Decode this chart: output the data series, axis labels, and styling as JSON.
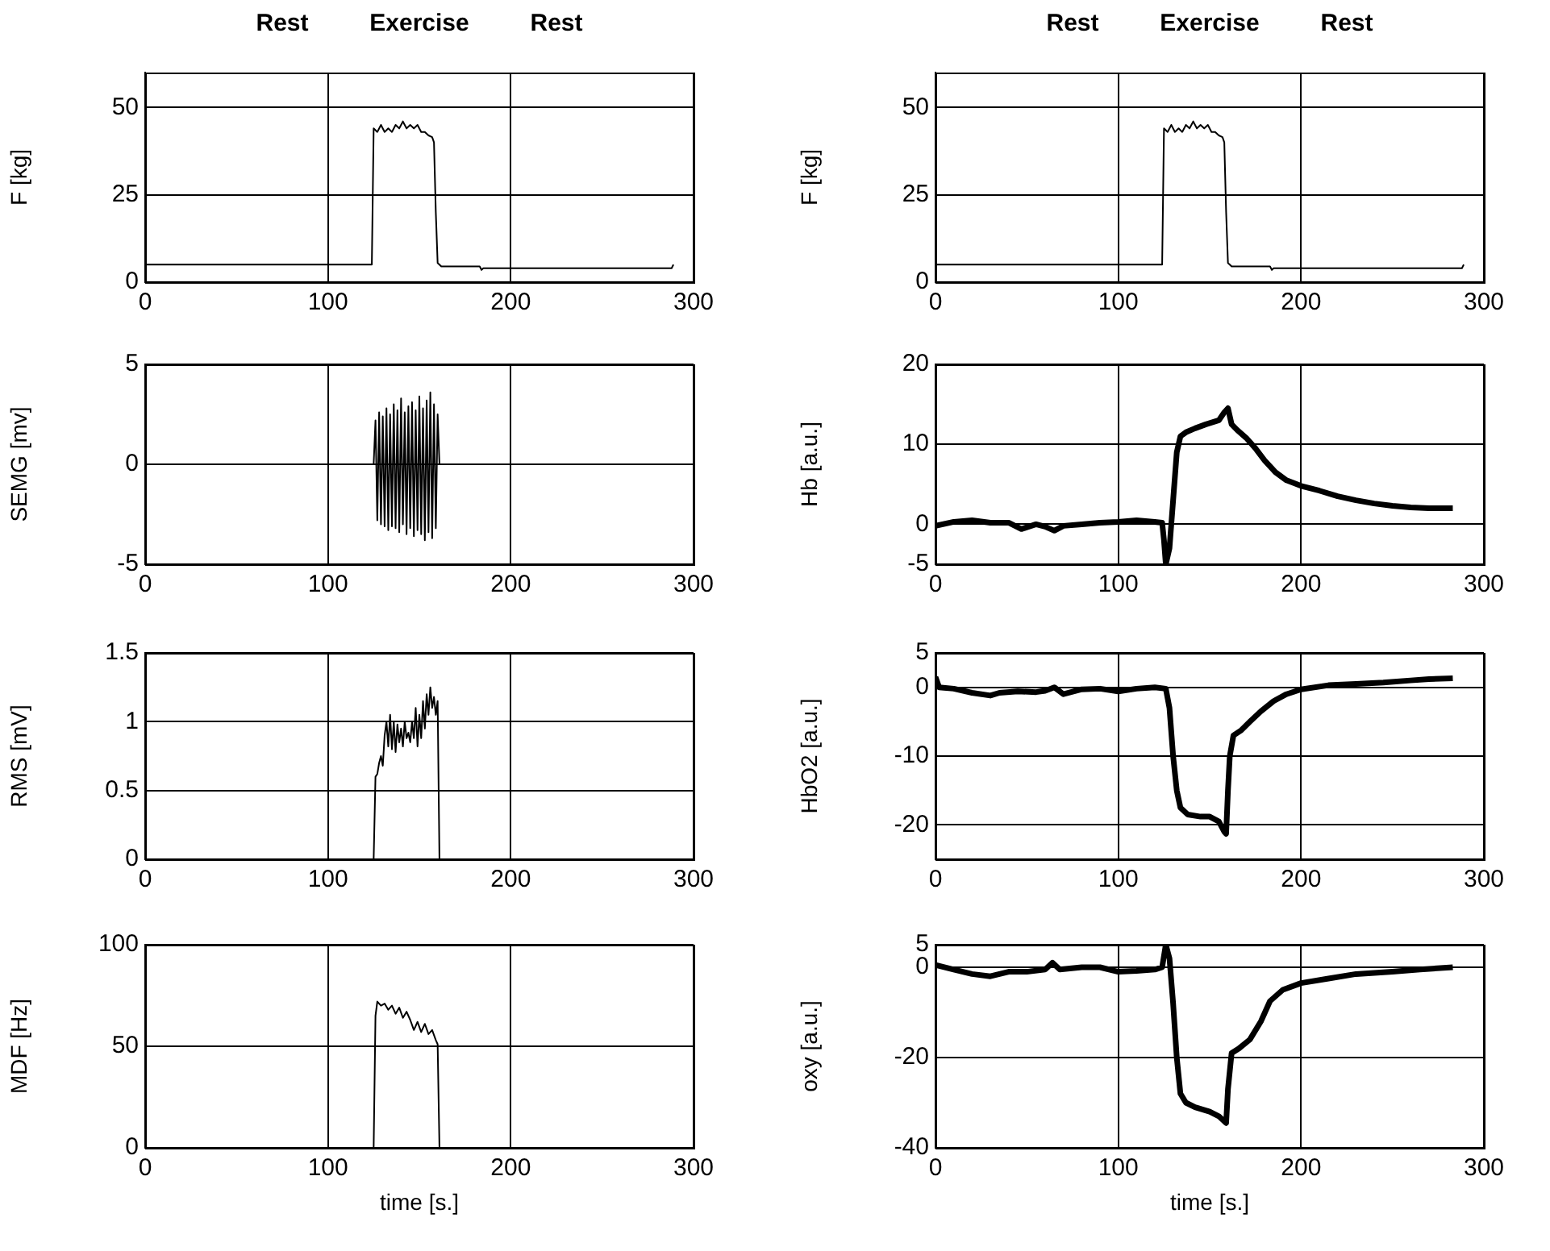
{
  "chart_data": [
    {
      "type": "line",
      "ylabel": "F [kg]",
      "annotations": [
        "Rest",
        "Exercise",
        "Rest"
      ],
      "xlim": [
        0,
        300
      ],
      "xticks": [
        0,
        100,
        200,
        300
      ],
      "ylim": [
        0,
        60
      ],
      "yticks": [
        0,
        25,
        50
      ],
      "grid": true,
      "series": [
        {
          "color": "#000000",
          "x": [
            0,
            124,
            125,
            127,
            129,
            131,
            133,
            135,
            137,
            139,
            141,
            143,
            145,
            147,
            149,
            151,
            153,
            155,
            157,
            158,
            159,
            160,
            162,
            183,
            184,
            185,
            288,
            289
          ],
          "values": [
            5,
            5,
            44,
            43,
            45,
            43,
            44,
            43,
            45,
            44,
            46,
            44,
            45,
            44,
            45,
            43,
            43,
            42,
            41.5,
            40,
            20,
            5.5,
            4.5,
            4.5,
            3.5,
            4,
            4,
            5
          ]
        }
      ]
    },
    {
      "type": "line",
      "ylabel": "F [kg]",
      "annotations": [
        "Rest",
        "Exercise",
        "Rest"
      ],
      "xlim": [
        0,
        300
      ],
      "xticks": [
        0,
        100,
        200,
        300
      ],
      "ylim": [
        0,
        60
      ],
      "yticks": [
        0,
        25,
        50
      ],
      "grid": true,
      "series": [
        {
          "color": "#000000",
          "x": [
            0,
            124,
            125,
            127,
            129,
            131,
            133,
            135,
            137,
            139,
            141,
            143,
            145,
            147,
            149,
            151,
            153,
            155,
            157,
            158,
            159,
            160,
            162,
            183,
            184,
            185,
            288,
            289
          ],
          "values": [
            5,
            5,
            44,
            43,
            45,
            43,
            44,
            43,
            45,
            44,
            46,
            44,
            45,
            44,
            45,
            43,
            43,
            42,
            41.5,
            40,
            20,
            5.5,
            4.5,
            4.5,
            3.5,
            4,
            4,
            5
          ]
        }
      ]
    },
    {
      "type": "line",
      "ylabel": "SEMG [mv]",
      "xlim": [
        0,
        300
      ],
      "xticks": [
        0,
        100,
        200,
        300
      ],
      "ylim": [
        -5,
        5
      ],
      "yticks": [
        -5,
        0,
        5
      ],
      "grid": true,
      "series": [
        {
          "color": "#000000",
          "x": [
            0,
            125,
            126,
            127,
            128,
            129,
            130,
            131,
            132,
            133,
            134,
            135,
            136,
            137,
            138,
            139,
            140,
            141,
            142,
            143,
            144,
            145,
            146,
            147,
            148,
            149,
            150,
            151,
            152,
            153,
            154,
            155,
            156,
            157,
            158,
            159,
            160,
            161,
            285
          ],
          "values": [
            0,
            0,
            2.2,
            -2.8,
            2.6,
            -3.0,
            2.4,
            -3.1,
            2.8,
            -3.3,
            2.5,
            -3.1,
            3.0,
            -3.2,
            2.7,
            -3.4,
            3.3,
            -3.0,
            2.6,
            -3.5,
            2.9,
            -3.2,
            3.1,
            -3.6,
            2.7,
            -3.3,
            3.4,
            -3.5,
            2.8,
            -3.8,
            3.2,
            -3.4,
            3.6,
            -3.7,
            3.0,
            -3.2,
            2.5,
            0,
            0
          ]
        }
      ]
    },
    {
      "type": "line",
      "ylabel": "Hb [a.u.]",
      "xlim": [
        0,
        300
      ],
      "xticks": [
        0,
        100,
        200,
        300
      ],
      "ylim": [
        -5,
        20
      ],
      "yticks": [
        -5,
        0,
        10,
        20
      ],
      "grid": true,
      "series": [
        {
          "color": "#000000",
          "x": [
            0,
            10,
            20,
            30,
            40,
            47,
            55,
            60,
            65,
            70,
            80,
            90,
            100,
            110,
            120,
            124,
            125,
            126,
            128,
            130,
            132,
            134,
            137,
            142,
            148,
            155,
            158,
            160,
            162,
            165,
            170,
            175,
            180,
            186,
            192,
            200,
            210,
            220,
            230,
            240,
            250,
            260,
            270,
            283
          ],
          "values": [
            -0.2,
            0.3,
            0.5,
            0.2,
            0.2,
            -0.6,
            0,
            -0.3,
            -0.8,
            -0.2,
            0,
            0.2,
            0.3,
            0.5,
            0.3,
            0.2,
            -2,
            -5,
            -3,
            3,
            9,
            11,
            11.5,
            12,
            12.5,
            13,
            14,
            14.5,
            12.5,
            11.8,
            10.8,
            9.5,
            8,
            6.5,
            5.5,
            4.8,
            4.2,
            3.5,
            3,
            2.6,
            2.3,
            2.1,
            2.0,
            2.0
          ]
        }
      ]
    },
    {
      "type": "line",
      "ylabel": "RMS [mV]",
      "xlim": [
        0,
        300
      ],
      "xticks": [
        0,
        100,
        200,
        300
      ],
      "ylim": [
        0,
        1.5
      ],
      "yticks": [
        0,
        0.5,
        1,
        1.5
      ],
      "grid": true,
      "series": [
        {
          "color": "#000000",
          "x": [
            0,
            125,
            126,
            127,
            128,
            129,
            130,
            131,
            132,
            133,
            134,
            135,
            136,
            137,
            138,
            139,
            140,
            141,
            142,
            143,
            144,
            145,
            146,
            147,
            148,
            149,
            150,
            151,
            152,
            153,
            154,
            155,
            156,
            157,
            158,
            159,
            160,
            161,
            285
          ],
          "values": [
            0,
            0,
            0.6,
            0.62,
            0.7,
            0.75,
            0.68,
            0.9,
            1.0,
            0.82,
            1.05,
            0.8,
            1.0,
            0.78,
            0.98,
            0.85,
            0.95,
            0.82,
            1.0,
            0.88,
            0.92,
            0.85,
            1.0,
            0.88,
            1.1,
            0.82,
            1.05,
            0.88,
            1.15,
            0.95,
            1.2,
            1.05,
            1.25,
            1.1,
            1.18,
            1.05,
            1.15,
            0,
            0
          ]
        }
      ]
    },
    {
      "type": "line",
      "ylabel": "HbO2 [a.u.]",
      "xlim": [
        0,
        300
      ],
      "xticks": [
        0,
        100,
        200,
        300
      ],
      "ylim": [
        -25,
        5
      ],
      "yticks": [
        -20,
        -10,
        0,
        5
      ],
      "grid": true,
      "series": [
        {
          "color": "#000000",
          "x": [
            0,
            2,
            10,
            20,
            30,
            35,
            45,
            55,
            60,
            65,
            70,
            80,
            90,
            100,
            110,
            120,
            126,
            128,
            130,
            132,
            134,
            138,
            145,
            150,
            155,
            158,
            159,
            160,
            161,
            163,
            167,
            172,
            178,
            185,
            192,
            200,
            215,
            230,
            245,
            260,
            270,
            283
          ],
          "values": [
            1.5,
            0,
            -0.2,
            -0.8,
            -1.2,
            -0.8,
            -0.6,
            -0.7,
            -0.5,
            0,
            -1,
            -0.3,
            -0.2,
            -0.6,
            -0.2,
            0,
            -0.2,
            -3,
            -10,
            -15,
            -17.5,
            -18.5,
            -18.8,
            -18.8,
            -19.5,
            -21,
            -21.3,
            -15,
            -10,
            -7,
            -6.3,
            -5,
            -3.5,
            -2,
            -1,
            -0.3,
            0.3,
            0.5,
            0.7,
            1.0,
            1.2,
            1.3
          ]
        }
      ]
    },
    {
      "type": "line",
      "ylabel": "MDF [Hz]",
      "xlabel": "time [s.]",
      "xlim": [
        0,
        300
      ],
      "xticks": [
        0,
        100,
        200,
        300
      ],
      "ylim": [
        0,
        100
      ],
      "yticks": [
        0,
        50,
        100
      ],
      "grid": true,
      "series": [
        {
          "color": "#000000",
          "x": [
            0,
            125,
            126,
            127,
            129,
            131,
            133,
            135,
            137,
            139,
            141,
            143,
            145,
            147,
            149,
            151,
            153,
            155,
            157,
            159,
            160,
            161,
            285
          ],
          "values": [
            0,
            0,
            65,
            72,
            70,
            71,
            68,
            70,
            66,
            69,
            64,
            67,
            63,
            58,
            62,
            57,
            61,
            56,
            58,
            53,
            51,
            0,
            0
          ]
        }
      ]
    },
    {
      "type": "line",
      "ylabel": "oxy [a.u.]",
      "xlabel": "time [s.]",
      "xlim": [
        0,
        300
      ],
      "xticks": [
        0,
        100,
        200,
        300
      ],
      "ylim": [
        -40,
        5
      ],
      "yticks": [
        -40,
        -20,
        0,
        5
      ],
      "grid": true,
      "series": [
        {
          "color": "#000000",
          "x": [
            0,
            10,
            20,
            30,
            40,
            50,
            60,
            64,
            68,
            80,
            90,
            100,
            110,
            120,
            124,
            126,
            128,
            130,
            132,
            134,
            137,
            142,
            150,
            155,
            159,
            160,
            162,
            166,
            172,
            178,
            183,
            190,
            200,
            215,
            230,
            250,
            265,
            283
          ],
          "values": [
            0.5,
            -0.5,
            -1.5,
            -2,
            -1,
            -1,
            -0.5,
            1,
            -0.5,
            0,
            0,
            -1,
            -0.8,
            -0.5,
            0,
            5,
            2,
            -8,
            -20,
            -28,
            -30,
            -31,
            -32,
            -33,
            -34.5,
            -27,
            -19,
            -18,
            -16,
            -12,
            -7.5,
            -5,
            -3.5,
            -2.5,
            -1.5,
            -1,
            -0.5,
            0
          ]
        }
      ]
    }
  ]
}
